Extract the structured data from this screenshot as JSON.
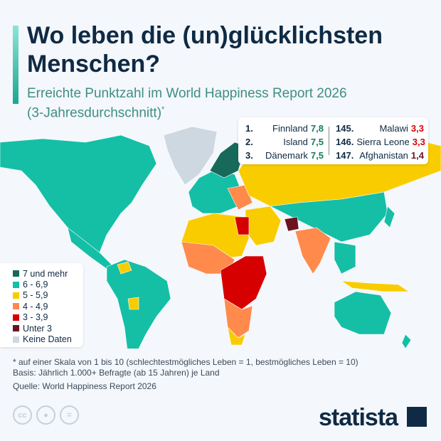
{
  "header": {
    "title_line1": "Wo leben die (un)glücklichsten",
    "title_line2": "Menschen?",
    "subtitle_line1": "Erreichte Punktzahl im World Happiness Report 2026",
    "subtitle_line2": "(3-Jahresdurchschnitt)",
    "subtitle_mark": "*"
  },
  "ranking": {
    "top": [
      {
        "rank": "1.",
        "country": "Finnland",
        "score": "7,8"
      },
      {
        "rank": "2.",
        "country": "Island",
        "score": "7,5"
      },
      {
        "rank": "3.",
        "country": "Dänemark",
        "score": "7,5"
      }
    ],
    "bottom": [
      {
        "rank": "145.",
        "country": "Malawi",
        "score": "3,3",
        "color": "#d60000"
      },
      {
        "rank": "146.",
        "country": "Sierra Leone",
        "score": "3,3",
        "color": "#d60000"
      },
      {
        "rank": "147.",
        "country": "Afghanistan",
        "score": "1,4",
        "color": "#6b1420"
      }
    ],
    "top_color": "#1a7a62"
  },
  "legend": [
    {
      "label": "7 und mehr",
      "color": "#17695a"
    },
    {
      "label": "6 - 6,9",
      "color": "#14bfa6"
    },
    {
      "label": "5 - 5,9",
      "color": "#f9cc00"
    },
    {
      "label": "4 - 4,9",
      "color": "#ff8a4c"
    },
    {
      "label": "3 - 3,9",
      "color": "#d60000"
    },
    {
      "label": "Unter 3",
      "color": "#6b1420"
    },
    {
      "label": "Keine Daten",
      "color": "#cdd8e0"
    }
  ],
  "notes": {
    "line1": "* auf einer Skala von 1 bis 10 (schlechtestmögliches Leben = 1, bestmögliches Leben = 10)",
    "line2": "Basis: Jährlich 1.000+ Befragte (ab 15 Jahren) je Land",
    "source": "Quelle: World Happiness Report 2026"
  },
  "footer": {
    "license_icons": [
      "cc-icon",
      "by-icon",
      "nd-icon"
    ],
    "cc_text": "cc",
    "brand": "statista"
  }
}
